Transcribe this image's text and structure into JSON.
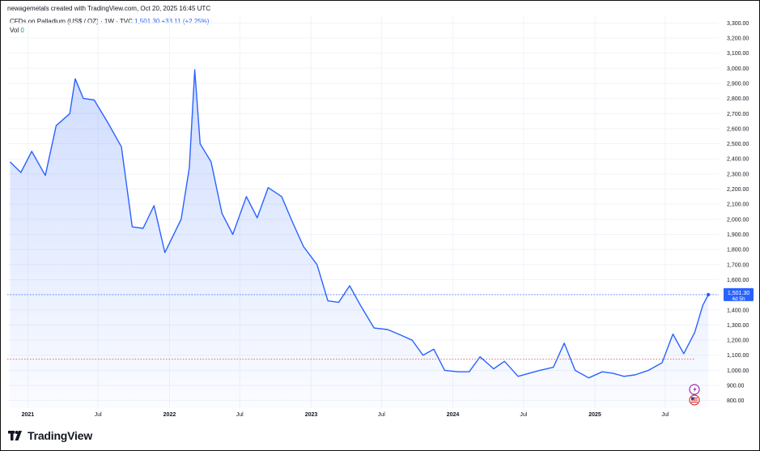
{
  "watermark_text": "newagemetals created with TradingView.com, Oct 20, 2025 16:45 UTC",
  "legend": {
    "symbol": "CFDs on Palladium (US$ / OZ) · 1W · TVC",
    "last": "1,501.30",
    "change": "+33.11 (+2.25%)",
    "vol_label": "Vol",
    "vol_value": "0"
  },
  "price_tag": {
    "price": "1,501.30",
    "countdown": "4d 5h"
  },
  "brand": "TradingView",
  "colors": {
    "line": "#2962ff",
    "fill": "#2962ff",
    "price_line": "#2962ff",
    "ref_line": "#f23645"
  },
  "icons": [
    "flash-icon",
    "us-flag-icon"
  ],
  "chart_data": {
    "type": "area",
    "title": "CFDs on Palladium (US$ / OZ)",
    "interval": "1W",
    "xlabel": "",
    "ylabel": "",
    "ylim": [
      750,
      3350
    ],
    "ytick_labels": [
      "800.00",
      "900.00",
      "1,000.00",
      "1,100.00",
      "1,200.00",
      "1,300.00",
      "1,400.00",
      "1,500.00",
      "1,600.00",
      "1,700.00",
      "1,800.00",
      "1,900.00",
      "2,000.00",
      "2,100.00",
      "2,200.00",
      "2,300.00",
      "2,400.00",
      "2,500.00",
      "2,600.00",
      "2,700.00",
      "2,800.00",
      "2,900.00",
      "3,000.00",
      "3,100.00",
      "3,200.00",
      "3,300.00"
    ],
    "ytick_values": [
      800,
      900,
      1000,
      1100,
      1200,
      1300,
      1400,
      1500,
      1600,
      1700,
      1800,
      1900,
      2000,
      2100,
      2200,
      2300,
      2400,
      2500,
      2600,
      2700,
      2800,
      2900,
      3000,
      3100,
      3200,
      3300
    ],
    "xtick_labels": [
      "2021",
      "Jul",
      "2022",
      "Jul",
      "2023",
      "Jul",
      "2024",
      "Jul",
      "2025",
      "Jul"
    ],
    "xtick_dates": [
      "2021-01-01",
      "2021-07-01",
      "2022-01-01",
      "2022-07-01",
      "2023-01-01",
      "2023-07-01",
      "2024-01-01",
      "2024-07-01",
      "2025-01-01",
      "2025-07-01"
    ],
    "grid": true,
    "current_price": 1501.3,
    "reference_level": 1075,
    "series": [
      {
        "x": [
          "2020-11-16",
          "2020-12-14",
          "2021-01-11",
          "2021-02-15",
          "2021-03-15",
          "2021-04-19",
          "2021-05-03",
          "2021-05-24",
          "2021-06-21",
          "2021-07-26",
          "2021-08-30",
          "2021-09-27",
          "2021-10-25",
          "2021-11-22",
          "2021-12-20",
          "2022-01-31",
          "2022-02-21",
          "2022-03-07",
          "2022-03-21",
          "2022-04-18",
          "2022-05-16",
          "2022-06-13",
          "2022-07-18",
          "2022-08-15",
          "2022-09-12",
          "2022-10-17",
          "2022-11-14",
          "2022-12-12",
          "2023-01-16",
          "2023-02-13",
          "2023-03-13",
          "2023-04-10",
          "2023-05-08",
          "2023-06-12",
          "2023-07-17",
          "2023-08-14",
          "2023-09-18",
          "2023-10-16",
          "2023-11-13",
          "2023-12-11",
          "2024-01-15",
          "2024-02-12",
          "2024-03-11",
          "2024-04-15",
          "2024-05-13",
          "2024-06-17",
          "2024-07-15",
          "2024-08-12",
          "2024-09-16",
          "2024-10-14",
          "2024-11-11",
          "2024-12-16",
          "2025-01-20",
          "2025-02-17",
          "2025-03-17",
          "2025-04-14",
          "2025-05-19",
          "2025-06-23",
          "2025-07-21",
          "2025-08-18",
          "2025-09-15",
          "2025-10-06",
          "2025-10-20"
        ],
        "values": [
          2380,
          2310,
          2450,
          2290,
          2620,
          2700,
          2930,
          2800,
          2790,
          2640,
          2480,
          1950,
          1940,
          2090,
          1780,
          2000,
          2340,
          2990,
          2500,
          2380,
          2040,
          1900,
          2150,
          2010,
          2210,
          2150,
          1980,
          1820,
          1700,
          1460,
          1450,
          1560,
          1430,
          1280,
          1270,
          1240,
          1200,
          1100,
          1140,
          1000,
          990,
          990,
          1090,
          1010,
          1060,
          960,
          980,
          1000,
          1020,
          1180,
          1000,
          950,
          990,
          980,
          960,
          970,
          1000,
          1050,
          1240,
          1110,
          1250,
          1430,
          1501
        ]
      }
    ]
  }
}
